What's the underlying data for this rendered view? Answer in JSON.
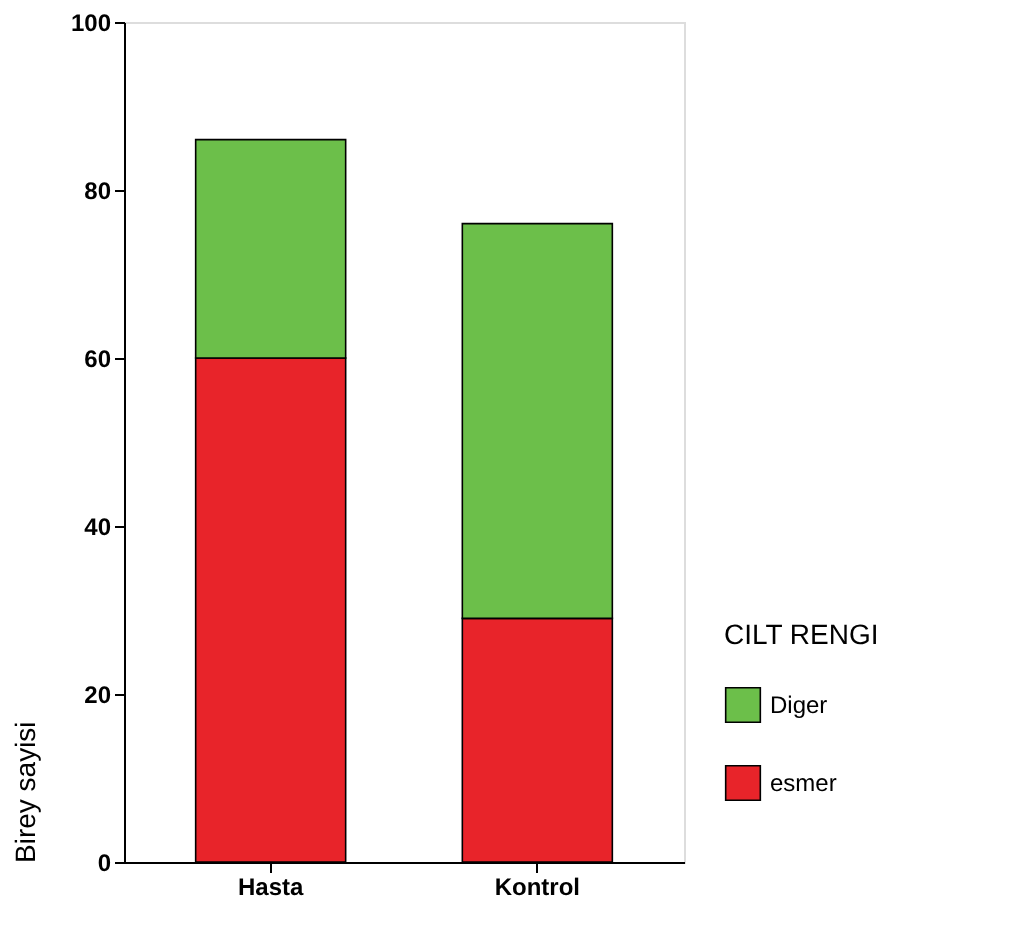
{
  "chart_data": {
    "type": "bar",
    "stacked": true,
    "categories": [
      "Hasta",
      "Kontrol"
    ],
    "ylabel": "Birey sayisi",
    "legend_title": "CILT RENGI",
    "legend": "bottom right",
    "ylim": [
      0,
      100
    ],
    "yticks": [
      0,
      20,
      40,
      60,
      80,
      100
    ],
    "grid": false,
    "series": [
      {
        "name": "esmer",
        "color": "#e8242a",
        "values": [
          60,
          29
        ]
      },
      {
        "name": "Diger",
        "color": "#6cbf4a",
        "values": [
          26,
          47
        ]
      }
    ]
  }
}
